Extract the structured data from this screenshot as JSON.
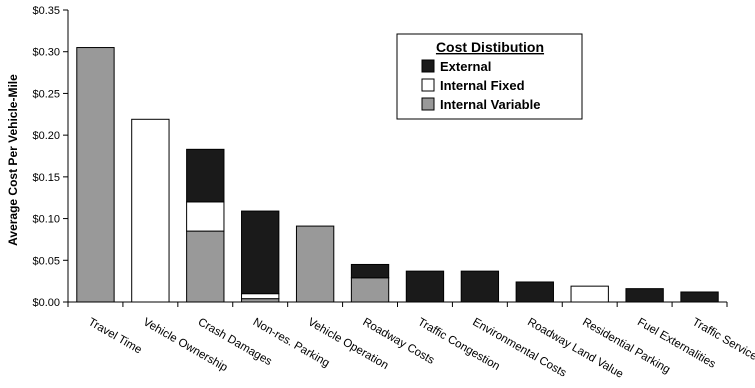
{
  "chart_data": {
    "type": "bar",
    "stacked": true,
    "title": "",
    "xlabel": "",
    "ylabel": "Average Cost Per Vehicle-Mile",
    "ylim": [
      0,
      0.35
    ],
    "y_ticks": [
      "$0.00",
      "$0.05",
      "$0.10",
      "$0.15",
      "$0.20",
      "$0.25",
      "$0.30",
      "$0.35"
    ],
    "grid": false,
    "legend": {
      "title": "Cost Distibution",
      "position": "top-right"
    },
    "categories": [
      "Travel Time",
      "Vehicle Ownership",
      "Crash Damages",
      "Non-res. Parking",
      "Vehicle Operation",
      "Roadway Costs",
      "Traffic Congestion",
      "Environmental Costs",
      "Roadway Land Value",
      "Residential Parking",
      "Fuel Externalities",
      "Traffic Services"
    ],
    "series": [
      {
        "name": "Internal Variable",
        "color": "#999999",
        "values": [
          0.305,
          0,
          0.085,
          0.004,
          0.091,
          0.029,
          0,
          0,
          0,
          0,
          0,
          0
        ]
      },
      {
        "name": "Internal Fixed",
        "color": "#ffffff",
        "values": [
          0,
          0.219,
          0.035,
          0.006,
          0,
          0,
          0,
          0,
          0,
          0.019,
          0,
          0
        ]
      },
      {
        "name": "External",
        "color": "#1a1a1a",
        "values": [
          0,
          0,
          0.063,
          0.099,
          0,
          0.016,
          0.037,
          0.037,
          0.024,
          0,
          0.016,
          0.012
        ]
      }
    ],
    "legend_order": [
      "External",
      "Internal Fixed",
      "Internal Variable"
    ]
  }
}
